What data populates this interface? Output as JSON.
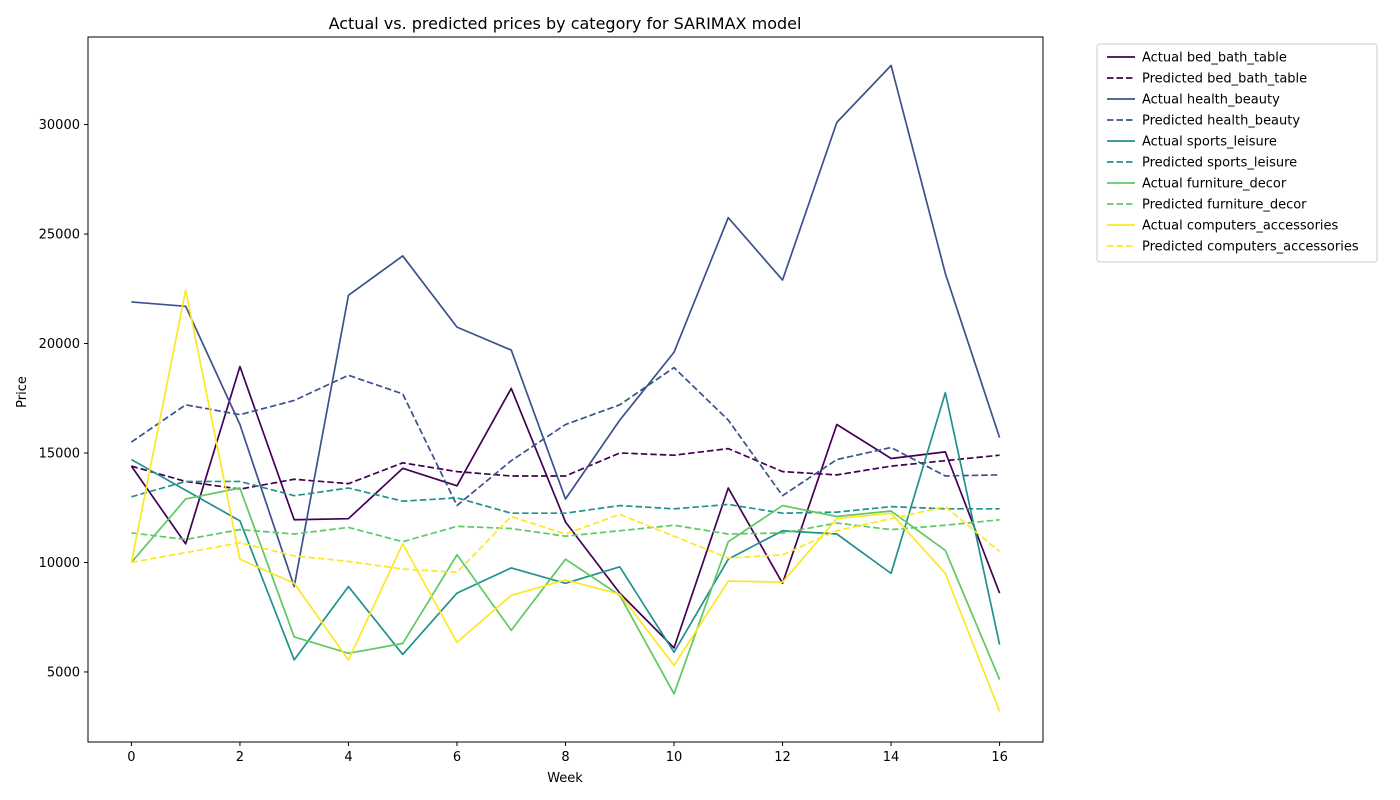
{
  "chart_data": {
    "type": "line",
    "title": "Actual vs. predicted prices by category for SARIMAX model",
    "xlabel": "Week",
    "ylabel": "Price",
    "xlim": [
      -0.8,
      16.8
    ],
    "ylim": [
      1800,
      34000
    ],
    "x_ticks": [
      0,
      2,
      4,
      6,
      8,
      10,
      12,
      14,
      16
    ],
    "y_ticks": [
      5000,
      10000,
      15000,
      20000,
      25000,
      30000
    ],
    "grid": false,
    "legend_position": "outside-top-right",
    "x": [
      0,
      1,
      2,
      3,
      4,
      5,
      6,
      7,
      8,
      9,
      10,
      11,
      12,
      13,
      14,
      15,
      16
    ],
    "series": [
      {
        "name": "Actual bed_bath_table",
        "color": "#440154",
        "style": "solid",
        "values": [
          14400,
          10850,
          18950,
          11950,
          12000,
          14300,
          13500,
          17950,
          11850,
          8600,
          6100,
          13400,
          9050,
          16300,
          14750,
          15050,
          8600
        ]
      },
      {
        "name": "Predicted bed_bath_table",
        "color": "#440154",
        "style": "dashed",
        "values": [
          14400,
          13700,
          13350,
          13800,
          13600,
          14550,
          14150,
          13950,
          13950,
          15000,
          14900,
          15200,
          14150,
          14000,
          14400,
          14650,
          14900
        ]
      },
      {
        "name": "Actual health_beauty",
        "color": "#3b528b",
        "style": "solid",
        "values": [
          21900,
          21700,
          16300,
          8900,
          22200,
          24000,
          20750,
          19700,
          12900,
          16500,
          19600,
          25750,
          22900,
          30100,
          32700,
          23200,
          15700
        ]
      },
      {
        "name": "Predicted health_beauty",
        "color": "#3b528b",
        "style": "dashed",
        "values": [
          15500,
          17200,
          16750,
          17400,
          18550,
          17700,
          12600,
          14650,
          16300,
          17200,
          18900,
          16500,
          13050,
          14700,
          15250,
          13950,
          14000
        ]
      },
      {
        "name": "Actual sports_leisure",
        "color": "#21918c",
        "style": "solid",
        "values": [
          14700,
          13300,
          11900,
          5550,
          8900,
          5800,
          8600,
          9750,
          9050,
          9800,
          5900,
          10150,
          11450,
          11300,
          9500,
          17750,
          6250
        ]
      },
      {
        "name": "Predicted sports_leisure",
        "color": "#21918c",
        "style": "dashed",
        "values": [
          13000,
          13700,
          13700,
          13050,
          13400,
          12800,
          12950,
          12250,
          12250,
          12600,
          12450,
          12650,
          12250,
          12300,
          12550,
          12450,
          12450
        ]
      },
      {
        "name": "Actual furniture_decor",
        "color": "#5ec962",
        "style": "solid",
        "values": [
          10000,
          12900,
          13400,
          6600,
          5850,
          6300,
          10350,
          6900,
          10150,
          8500,
          4000,
          10950,
          12600,
          12100,
          12350,
          10550,
          4650
        ]
      },
      {
        "name": "Predicted furniture_decor",
        "color": "#5ec962",
        "style": "dashed",
        "values": [
          11350,
          11050,
          11500,
          11300,
          11600,
          10950,
          11650,
          11550,
          11200,
          11450,
          11700,
          11300,
          11350,
          11800,
          11500,
          11700,
          11950
        ]
      },
      {
        "name": "Actual computers_accessories",
        "color": "#fde725",
        "style": "solid",
        "values": [
          10000,
          22450,
          10150,
          9050,
          5550,
          10850,
          6350,
          8500,
          9200,
          8550,
          5300,
          9150,
          9100,
          12000,
          12250,
          9500,
          3200
        ]
      },
      {
        "name": "Predicted computers_accessories",
        "color": "#fde725",
        "style": "dashed",
        "values": [
          10000,
          10450,
          10900,
          10300,
          10050,
          9700,
          9550,
          12100,
          11300,
          12200,
          11200,
          10200,
          10350,
          11450,
          12000,
          12550,
          10500
        ]
      }
    ]
  }
}
